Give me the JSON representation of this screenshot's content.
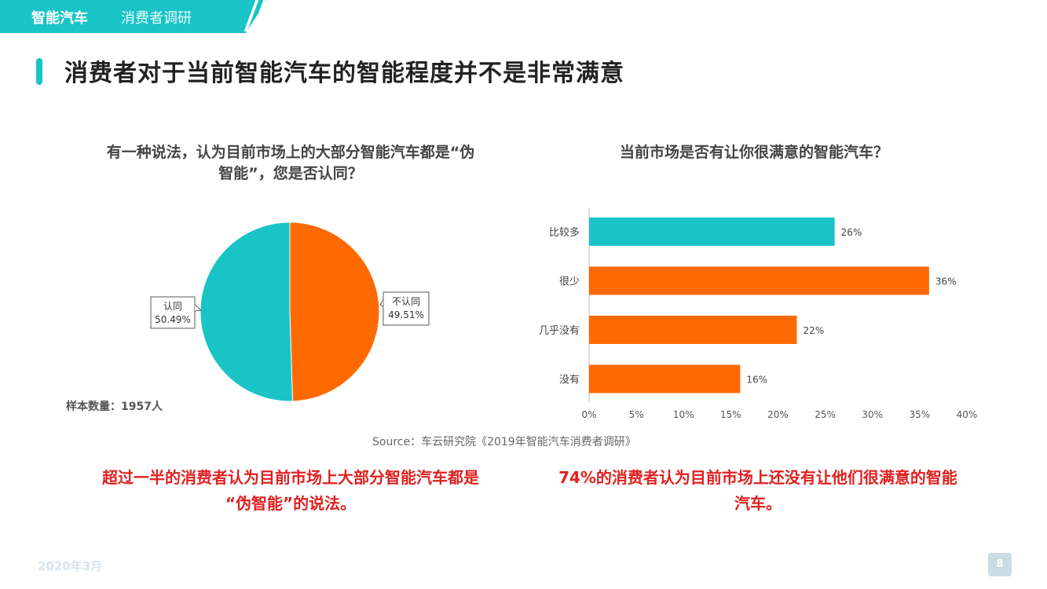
{
  "header": {
    "brand": "智能汽车",
    "section": "消费者调研"
  },
  "page_title": "消费者对于当前智能汽车的智能程度并不是非常满意",
  "left_chart": {
    "title_line1": "有一种说法，认为目前市场上的大部分智能汽车都是“伪",
    "title_line2": "智能”，您是否认同？",
    "sample_text": "样本数量：1957人"
  },
  "right_chart": {
    "title": "当前市场是否有让你很满意的智能汽车？"
  },
  "source_text": "Source：车云研究院《2019年智能汽车消费者调研》",
  "conclusions": {
    "left_line1": "超过一半的消费者认为目前市场上大部分智能汽车都是",
    "left_line2": "“伪智能”的说法。",
    "right_line1": "74%的消费者认为目前市场上还没有让他们很满意的智能",
    "right_line2": "汽车。"
  },
  "footer": {
    "date": "2020年3月",
    "page": "8"
  },
  "colors": {
    "teal": "#19c4c7",
    "orange": "#ff6a00",
    "red": "#e02020"
  },
  "chart_data": [
    {
      "type": "pie",
      "slices": [
        {
          "label": "认同",
          "value": 50.49,
          "value_label": "50.49%",
          "color": "#19c4c7"
        },
        {
          "label": "不认同",
          "value": 49.51,
          "value_label": "49.51%",
          "color": "#ff6a00"
        }
      ]
    },
    {
      "type": "bar",
      "orientation": "horizontal",
      "categories": [
        "比较多",
        "很少",
        "几乎没有",
        "没有"
      ],
      "values": [
        26,
        36,
        22,
        16
      ],
      "value_labels": [
        "26%",
        "36%",
        "22%",
        "16%"
      ],
      "colors": [
        "#19c4c7",
        "#ff6a00",
        "#ff6a00",
        "#ff6a00"
      ],
      "xlim": [
        0,
        40
      ],
      "xticks": [
        "0%",
        "5%",
        "10%",
        "15%",
        "20%",
        "25%",
        "30%",
        "35%",
        "40%"
      ],
      "grid": false
    }
  ]
}
